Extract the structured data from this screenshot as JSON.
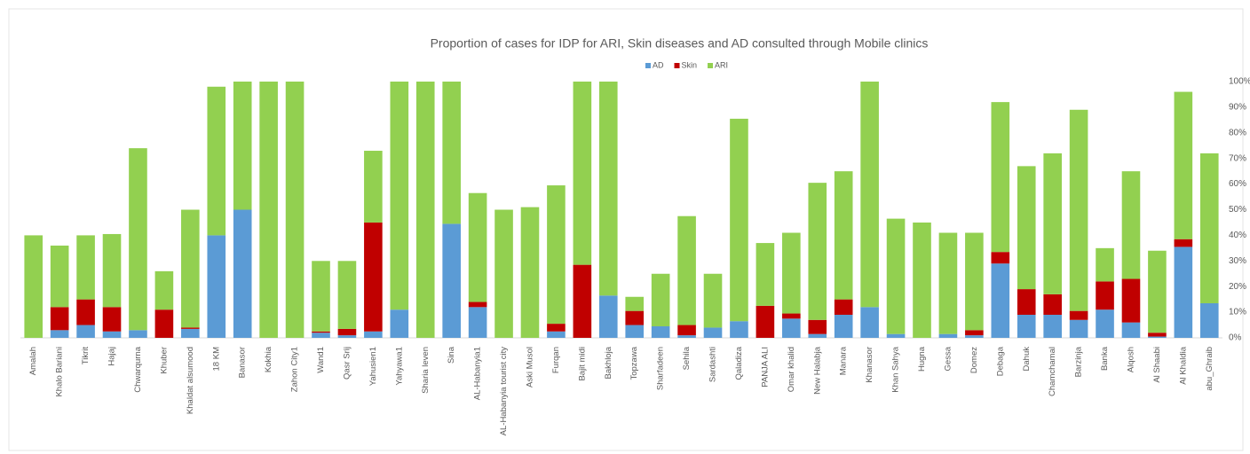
{
  "chart_data": {
    "type": "stacked_bar",
    "title": "Proportion of cases for IDP for ARI, Skin diseases and AD consulted through Mobile clinics",
    "legend": "top",
    "categories": [
      "Amalah",
      "Khalo Bariani",
      "Tikrit",
      "Hajaj",
      "Chwarqurna",
      "Khuber",
      "Khaldat alsumood",
      "18 KM",
      "Banasor",
      "Kokhia",
      "Zahon City1",
      "Wand1",
      "Qasr Srij",
      "Yahusien1",
      "Yahyawa1",
      "Sharia leven",
      "Sina",
      "AL-Habanyia1",
      "AL-Habanyia tourist city",
      "Aski Musol",
      "Furqan",
      "Bajit midi",
      "Bakhloja",
      "Topzawa",
      "Sharfadeen",
      "Sehila",
      "Sardashti",
      "Qaladiza",
      "PANJA ALI",
      "Omar khalid",
      "New Halabja",
      "Manara",
      "Khanasor",
      "Khan Sahya",
      "Hugna",
      "Gessa",
      "Domez",
      "Debaga",
      "Dahuk",
      "Chamchamal",
      "Barzinja",
      "Banka",
      "Alqosh",
      "Al Shaabi",
      "Al Khaldia",
      "abu_Ghraib"
    ],
    "series": [
      {
        "name": "AD",
        "color": "#5b9bd5",
        "values": [
          0,
          3,
          5,
          2.5,
          3,
          0,
          3.5,
          40,
          50,
          0,
          0,
          2,
          1,
          2.5,
          11,
          0,
          44.5,
          12,
          0,
          0,
          2.5,
          0,
          16.5,
          5,
          4.5,
          1,
          4,
          6.5,
          0,
          7.5,
          1.5,
          9,
          12,
          1.5,
          0,
          1.5,
          1,
          29,
          9,
          9,
          7,
          11,
          6,
          0.5,
          35.5,
          13.5
        ]
      },
      {
        "name": "Skin",
        "color": "#c00000",
        "values": [
          0,
          9,
          10,
          9.5,
          0,
          11,
          0.5,
          0,
          0,
          0,
          0,
          0.5,
          2.5,
          42.5,
          0,
          0,
          0,
          2,
          0,
          0,
          3,
          28.5,
          0,
          5.5,
          0,
          4,
          0,
          0,
          12.5,
          2,
          5.5,
          6,
          0,
          0,
          0,
          0,
          2,
          4.5,
          10,
          8,
          3.5,
          11,
          17,
          1.5,
          3,
          0
        ]
      },
      {
        "name": "ARI",
        "color": "#92d050",
        "values": [
          40,
          24,
          25,
          28.5,
          71,
          15,
          46,
          58,
          50,
          100,
          100,
          27.5,
          26.5,
          28,
          89,
          100,
          55.5,
          42.5,
          50,
          51,
          54,
          71.5,
          83.5,
          5.5,
          20.5,
          42.5,
          21,
          79,
          24.5,
          31.5,
          53.5,
          50,
          88,
          45,
          45,
          39.5,
          38,
          58.5,
          48,
          55,
          78.5,
          13,
          42,
          32,
          57.5,
          58.5
        ]
      }
    ],
    "ylim": [
      0,
      100
    ],
    "yticks": [
      {
        "value": 0,
        "label": "0%"
      },
      {
        "value": 10,
        "label": "10%"
      },
      {
        "value": 20,
        "label": "20%"
      },
      {
        "value": 30,
        "label": "30%"
      },
      {
        "value": 40,
        "label": "40%"
      },
      {
        "value": 50,
        "label": "50%"
      },
      {
        "value": 60,
        "label": "60%"
      },
      {
        "value": 70,
        "label": "70%"
      },
      {
        "value": 80,
        "label": "80%"
      },
      {
        "value": 90,
        "label": "90%"
      },
      {
        "value": 100,
        "label": "100%"
      }
    ],
    "grid": false
  }
}
